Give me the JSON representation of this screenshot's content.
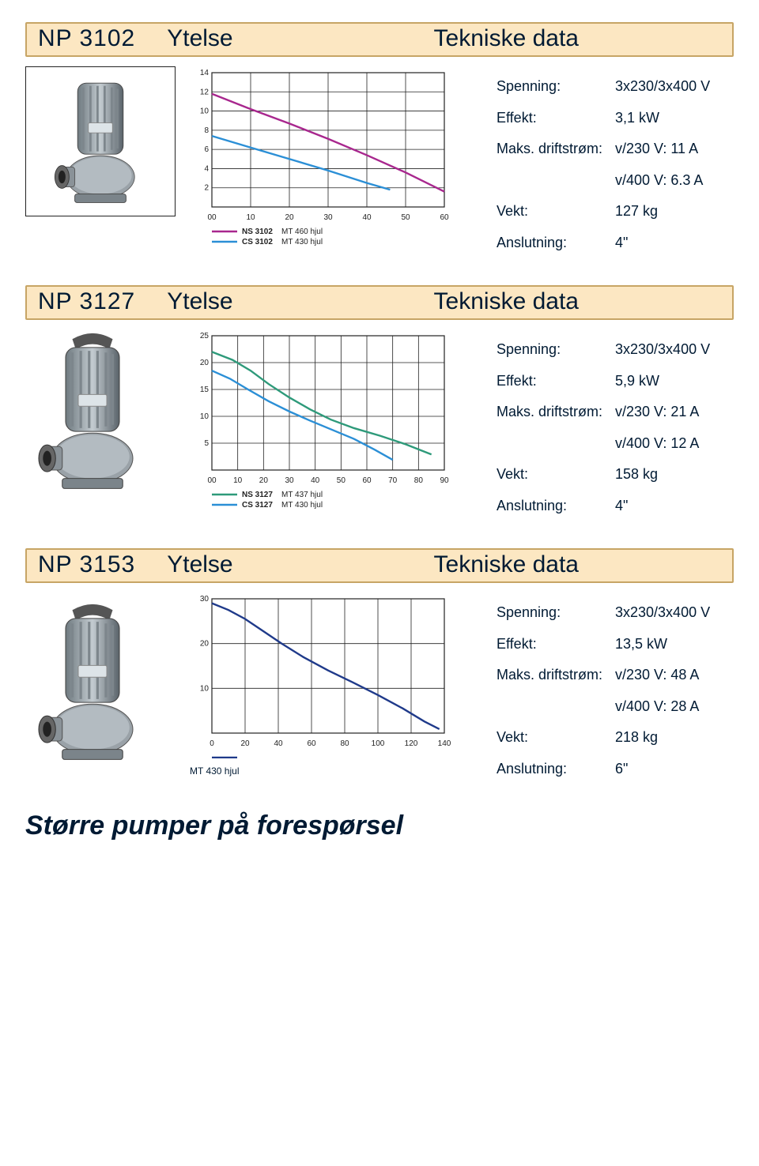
{
  "labels": {
    "ytelse": "Ytelse",
    "tekniske": "Tekniske data",
    "spenning": "Spenning:",
    "effekt": "Effekt:",
    "maks": "Maks. driftstrøm:",
    "vekt": "Vekt:",
    "anslutning": "Anslutning:"
  },
  "sections": [
    {
      "model": "NP 3102",
      "boxed_pump": true,
      "specs": {
        "spenning": "3x230/3x400 V",
        "effekt": "3,1 kW",
        "maks1": "v/230 V: 11 A",
        "maks2": "v/400 V: 6.3 A",
        "vekt": "127 kg",
        "anslutning": "4\""
      },
      "chart": {
        "xmax": 60,
        "xtick": 10,
        "ymax": 14,
        "ytick": 2,
        "x0label": "00",
        "series": [
          {
            "key": "NS 3102",
            "color": "#a8278e",
            "mt": "MT 460 hjul",
            "pts": [
              [
                0,
                11.8
              ],
              [
                10,
                10.2
              ],
              [
                20,
                8.7
              ],
              [
                30,
                7.1
              ],
              [
                40,
                5.4
              ],
              [
                50,
                3.6
              ],
              [
                60,
                1.6
              ]
            ]
          },
          {
            "key": "CS 3102",
            "color": "#2b8fd6",
            "mt": "MT 430 hjul",
            "pts": [
              [
                0,
                7.4
              ],
              [
                10,
                6.2
              ],
              [
                20,
                5.0
              ],
              [
                30,
                3.8
              ],
              [
                40,
                2.5
              ],
              [
                46,
                1.8
              ]
            ]
          }
        ]
      }
    },
    {
      "model": "NP 3127",
      "boxed_pump": false,
      "specs": {
        "spenning": "3x230/3x400 V",
        "effekt": "5,9 kW",
        "maks1": "v/230 V: 21 A",
        "maks2": "v/400 V: 12 A",
        "vekt": "158 kg",
        "anslutning": "4\""
      },
      "chart": {
        "xmax": 90,
        "xtick": 10,
        "ymax": 25,
        "ytick": 5,
        "x0label": "00",
        "series": [
          {
            "key": "NS 3127",
            "color": "#2e9a7a",
            "mt": "MT 437 hjul",
            "pts": [
              [
                0,
                22
              ],
              [
                8,
                20.5
              ],
              [
                15,
                18.5
              ],
              [
                22,
                16
              ],
              [
                30,
                13.5
              ],
              [
                38,
                11.3
              ],
              [
                46,
                9.4
              ],
              [
                55,
                7.8
              ],
              [
                65,
                6.4
              ],
              [
                75,
                4.8
              ],
              [
                85,
                2.9
              ]
            ]
          },
          {
            "key": "CS 3127",
            "color": "#2b8fd6",
            "mt": "MT 430 hjul",
            "pts": [
              [
                0,
                18.5
              ],
              [
                7,
                17
              ],
              [
                14,
                15
              ],
              [
                22,
                12.8
              ],
              [
                30,
                10.9
              ],
              [
                38,
                9.2
              ],
              [
                46,
                7.6
              ],
              [
                55,
                5.8
              ],
              [
                63,
                3.8
              ],
              [
                70,
                1.9
              ]
            ]
          }
        ]
      }
    },
    {
      "model": "NP 3153",
      "boxed_pump": false,
      "specs": {
        "spenning": "3x230/3x400 V",
        "effekt": "13,5 kW",
        "maks1": "v/230 V: 48 A",
        "maks2": "v/400 V: 28 A",
        "vekt": "218 kg",
        "anslutning": "6\""
      },
      "chart": {
        "xmax": 140,
        "xtick": 20,
        "ymax": 30,
        "ytick": 10,
        "x0label": "0",
        "series": [
          {
            "key": "",
            "color": "#1f3a8a",
            "mt": "MT 430 hjul",
            "pts": [
              [
                0,
                29
              ],
              [
                10,
                27.5
              ],
              [
                20,
                25.5
              ],
              [
                30,
                23
              ],
              [
                42,
                20
              ],
              [
                55,
                17
              ],
              [
                70,
                14
              ],
              [
                85,
                11.3
              ],
              [
                100,
                8.5
              ],
              [
                115,
                5.5
              ],
              [
                128,
                2.6
              ],
              [
                137,
                0.9
              ]
            ]
          }
        ]
      }
    }
  ],
  "footer": "Større pumper på forespørsel"
}
